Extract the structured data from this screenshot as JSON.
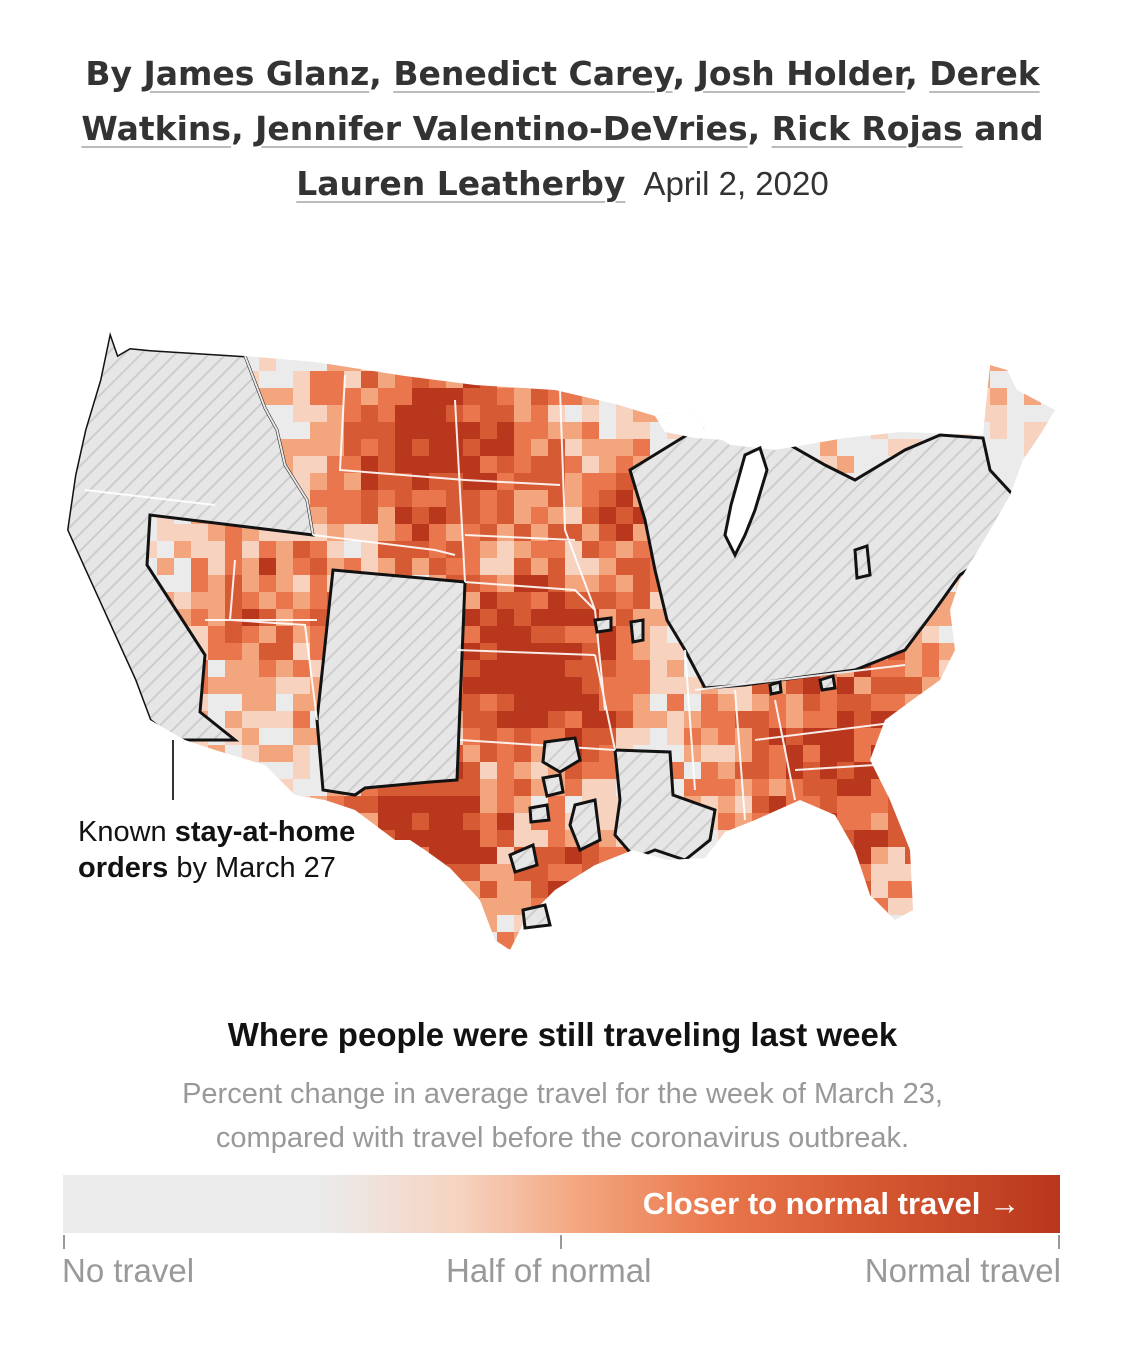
{
  "byline": {
    "prefix": "By ",
    "authors": [
      "James Glanz",
      "Benedict Carey",
      "Josh Holder",
      "Derek Watkins",
      "Jennifer Valentino-DeVries",
      "Rick Rojas",
      "Lauren Leatherby"
    ],
    "separator": ", ",
    "conjunction": " and ",
    "date": "April 2, 2020"
  },
  "callout": {
    "text_1": "Known ",
    "text_bold": "stay-at-home orders",
    "text_2": " by March 27"
  },
  "legend": {
    "title": "Where people were still traveling last week",
    "subtitle_line1": "Percent change in average travel for the week of March 23,",
    "subtitle_line2": "compared with travel before the coronavirus outbreak.",
    "bar_label": "Closer to normal travel →",
    "ticks": [
      "No travel",
      "Half of normal",
      "Normal travel"
    ],
    "scale_colors": [
      "#ebebeb",
      "#f6d2bf",
      "#f3a57d",
      "#e9764c",
      "#d65a33",
      "#b9371d"
    ]
  },
  "colors": {
    "no_travel": "#ebebeb",
    "normal_travel": "#b9371d",
    "stay_at_home_outline": "#121212",
    "state_border": "#ffffff"
  }
}
